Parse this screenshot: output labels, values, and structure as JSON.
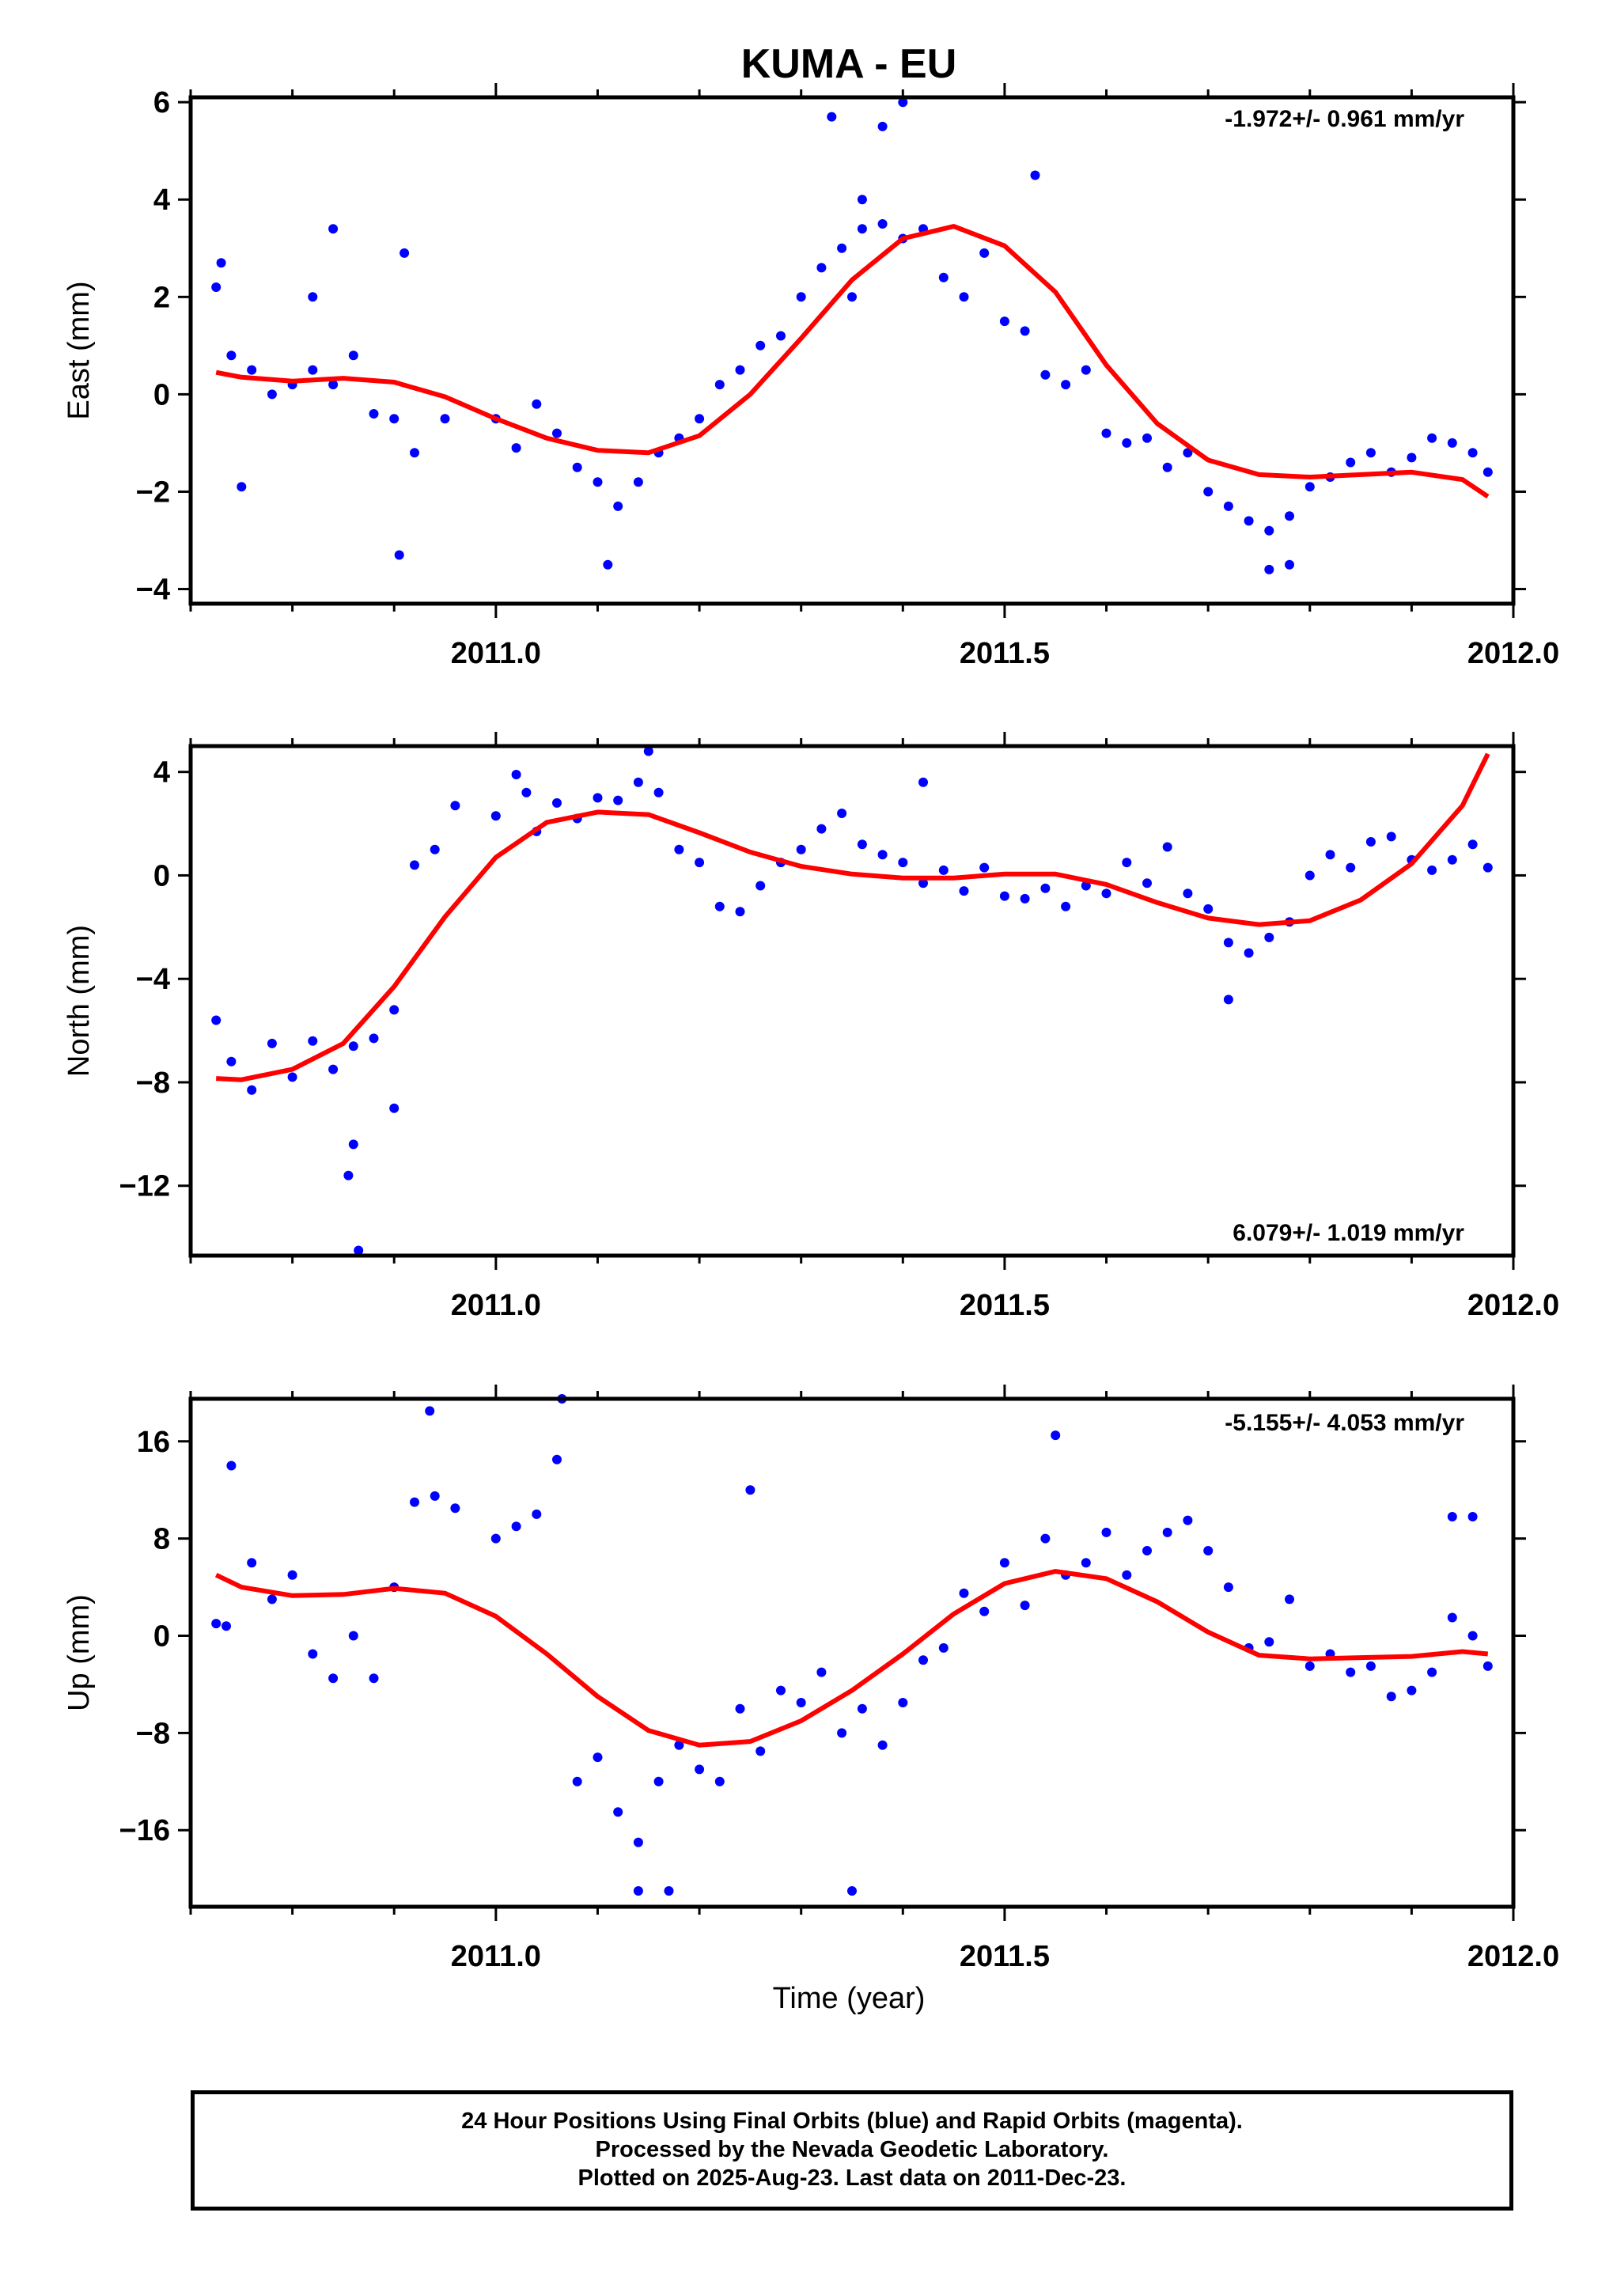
{
  "title": "KUMA - EU",
  "xlabel": "Time (year)",
  "footer": {
    "line1": "24 Hour Positions Using Final Orbits (blue) and Rapid Orbits (magenta).",
    "line2": "Processed by the Nevada Geodetic Laboratory.",
    "line3": "Plotted on 2025-Aug-23. Last data on 2011-Dec-23."
  },
  "colors": {
    "points": "#0000ff",
    "fit": "#ff0000",
    "axes": "#000000"
  },
  "chart_data": [
    {
      "type": "scatter",
      "ylabel": "East (mm)",
      "xlim": [
        2010.7,
        2012.0
      ],
      "ylim": [
        -4.3,
        6.1
      ],
      "xticks": [
        "2011.0",
        "2011.5",
        "2012.0"
      ],
      "yticks": [
        -4,
        -2,
        0,
        2,
        4,
        6
      ],
      "rate_label": "-1.972+/- 0.961 mm/yr",
      "series": [
        {
          "x": [
            2010.725,
            2010.74,
            2010.76,
            2010.78,
            2010.8,
            2010.82,
            2010.84,
            2010.86,
            2010.88,
            2010.9,
            2010.92,
            2010.95,
            2011.0,
            2011.02,
            2011.04,
            2011.06,
            2011.08,
            2011.1,
            2011.12,
            2011.14,
            2011.16,
            2011.18,
            2011.2,
            2011.22,
            2011.24,
            2011.26,
            2011.28,
            2011.3,
            2011.32,
            2011.34,
            2011.36,
            2011.38,
            2011.4,
            2011.42,
            2011.44,
            2011.46,
            2011.48,
            2011.5,
            2011.52,
            2011.54,
            2011.56,
            2011.58,
            2011.6,
            2011.62,
            2011.64,
            2011.66,
            2011.68,
            2011.7,
            2011.72,
            2011.74,
            2011.76,
            2011.78,
            2011.8,
            2011.82,
            2011.84,
            2011.86,
            2011.88,
            2011.9,
            2011.92,
            2011.94,
            2011.96,
            2011.975,
            2010.73,
            2010.75,
            2010.82,
            2010.84,
            2010.91,
            2011.11,
            2011.33,
            2011.36,
            2011.38,
            2011.4,
            2011.53,
            2011.76,
            2011.78,
            2010.905,
            2011.35
          ],
          "y": [
            2.2,
            0.8,
            0.5,
            0.0,
            0.2,
            0.5,
            0.2,
            0.8,
            -0.4,
            -0.5,
            -1.2,
            -0.5,
            -0.5,
            -1.1,
            -0.2,
            -0.8,
            -1.5,
            -1.8,
            -2.3,
            -1.8,
            -1.2,
            -0.9,
            -0.5,
            0.2,
            0.5,
            1.0,
            1.2,
            2.0,
            2.6,
            3.0,
            3.4,
            3.5,
            3.2,
            3.4,
            2.4,
            2.0,
            2.9,
            1.5,
            1.3,
            0.4,
            0.2,
            0.5,
            -0.8,
            -1.0,
            -0.9,
            -1.5,
            -1.2,
            -2.0,
            -2.3,
            -2.6,
            -2.8,
            -2.5,
            -1.9,
            -1.7,
            -1.4,
            -1.2,
            -1.6,
            -1.3,
            -0.9,
            -1.0,
            -1.2,
            -1.6,
            2.7,
            -1.9,
            2.0,
            3.4,
            2.9,
            -3.5,
            5.7,
            4.0,
            5.5,
            6.0,
            4.5,
            -3.6,
            -3.5,
            -3.3,
            2.0
          ]
        },
        {
          "name": "fit",
          "x": [
            2010.725,
            2010.75,
            2010.8,
            2010.85,
            2010.9,
            2010.95,
            2011.0,
            2011.05,
            2011.1,
            2011.15,
            2011.2,
            2011.25,
            2011.3,
            2011.35,
            2011.4,
            2011.45,
            2011.5,
            2011.55,
            2011.6,
            2011.65,
            2011.7,
            2011.75,
            2011.8,
            2011.85,
            2011.9,
            2011.95,
            2011.975
          ],
          "y": [
            0.45,
            0.35,
            0.27,
            0.33,
            0.25,
            -0.05,
            -0.5,
            -0.9,
            -1.15,
            -1.2,
            -0.85,
            0.0,
            1.15,
            2.35,
            3.2,
            3.45,
            3.05,
            2.1,
            0.6,
            -0.6,
            -1.35,
            -1.65,
            -1.7,
            -1.65,
            -1.6,
            -1.75,
            -2.1
          ]
        }
      ]
    },
    {
      "type": "scatter",
      "ylabel": "North (mm)",
      "xlim": [
        2010.7,
        2012.0
      ],
      "ylim": [
        -14.7,
        5.0
      ],
      "xticks": [
        "2011.0",
        "2011.5",
        "2012.0"
      ],
      "yticks": [
        -12,
        -8,
        -4,
        0,
        4
      ],
      "rate_label": "6.079+/- 1.019 mm/yr",
      "series": [
        {
          "x": [
            2010.725,
            2010.74,
            2010.76,
            2010.78,
            2010.8,
            2010.82,
            2010.84,
            2010.86,
            2010.88,
            2010.9,
            2010.92,
            2010.94,
            2010.96,
            2011.0,
            2011.02,
            2011.04,
            2011.06,
            2011.08,
            2011.1,
            2011.12,
            2011.14,
            2011.16,
            2011.18,
            2011.2,
            2011.22,
            2011.24,
            2011.26,
            2011.28,
            2011.3,
            2011.32,
            2011.34,
            2011.36,
            2011.38,
            2011.4,
            2011.42,
            2011.44,
            2011.46,
            2011.48,
            2011.5,
            2011.52,
            2011.54,
            2011.56,
            2011.58,
            2011.6,
            2011.62,
            2011.64,
            2011.66,
            2011.68,
            2011.7,
            2011.72,
            2011.74,
            2011.76,
            2011.78,
            2011.8,
            2011.82,
            2011.84,
            2011.86,
            2011.88,
            2011.9,
            2011.92,
            2011.94,
            2011.96,
            2011.975,
            2010.855,
            2010.86,
            2010.865,
            2010.9,
            2011.03,
            2011.15,
            2011.42,
            2011.72
          ],
          "y": [
            -5.6,
            -7.2,
            -8.3,
            -6.5,
            -7.8,
            -6.4,
            -7.5,
            -6.6,
            -6.3,
            -5.2,
            0.4,
            1.0,
            2.7,
            2.3,
            3.9,
            1.7,
            2.8,
            2.2,
            3.0,
            2.9,
            3.6,
            3.2,
            1.0,
            0.5,
            -1.2,
            -1.4,
            -0.4,
            0.5,
            1.0,
            1.8,
            2.4,
            1.2,
            0.8,
            0.5,
            -0.3,
            0.2,
            -0.6,
            0.3,
            -0.8,
            -0.9,
            -0.5,
            -1.2,
            -0.4,
            -0.7,
            0.5,
            -0.3,
            1.1,
            -0.7,
            -1.3,
            -2.6,
            -3.0,
            -2.4,
            -1.8,
            0.0,
            0.8,
            0.3,
            1.3,
            1.5,
            0.6,
            0.2,
            0.6,
            1.2,
            0.3,
            -11.6,
            -10.4,
            -14.5,
            -9.0,
            3.2,
            4.8,
            3.6,
            -4.8
          ]
        },
        {
          "name": "fit",
          "x": [
            2010.725,
            2010.75,
            2010.8,
            2010.85,
            2010.9,
            2010.95,
            2011.0,
            2011.05,
            2011.1,
            2011.15,
            2011.2,
            2011.25,
            2011.3,
            2011.35,
            2011.4,
            2011.45,
            2011.5,
            2011.55,
            2011.6,
            2011.65,
            2011.7,
            2011.75,
            2011.8,
            2011.85,
            2011.9,
            2011.95,
            2011.975
          ],
          "y": [
            -7.85,
            -7.9,
            -7.5,
            -6.5,
            -4.3,
            -1.6,
            0.7,
            2.05,
            2.45,
            2.35,
            1.65,
            0.9,
            0.35,
            0.05,
            -0.1,
            -0.1,
            0.05,
            0.05,
            -0.35,
            -1.05,
            -1.65,
            -1.9,
            -1.75,
            -0.95,
            0.45,
            2.7,
            4.7
          ]
        }
      ]
    },
    {
      "type": "scatter",
      "ylabel": "Up (mm)",
      "xlim": [
        2010.7,
        2012.0
      ],
      "ylim": [
        -22.3,
        19.5
      ],
      "xticks": [
        "2011.0",
        "2011.5",
        "2012.0"
      ],
      "yticks": [
        -16,
        -8,
        0,
        8,
        16
      ],
      "rate_label": "-5.155+/- 4.053 mm/yr",
      "series": [
        {
          "x": [
            2010.725,
            2010.74,
            2010.76,
            2010.78,
            2010.8,
            2010.82,
            2010.84,
            2010.86,
            2010.88,
            2010.9,
            2010.92,
            2010.94,
            2010.96,
            2011.0,
            2011.02,
            2011.04,
            2011.06,
            2011.08,
            2011.1,
            2011.12,
            2011.14,
            2011.16,
            2011.18,
            2011.2,
            2011.22,
            2011.24,
            2011.26,
            2011.28,
            2011.3,
            2011.32,
            2011.34,
            2011.36,
            2011.38,
            2011.4,
            2011.42,
            2011.44,
            2011.46,
            2011.48,
            2011.5,
            2011.52,
            2011.54,
            2011.56,
            2011.58,
            2011.6,
            2011.62,
            2011.64,
            2011.66,
            2011.68,
            2011.7,
            2011.72,
            2011.74,
            2011.76,
            2011.78,
            2011.8,
            2011.82,
            2011.84,
            2011.86,
            2011.88,
            2011.9,
            2011.92,
            2011.94,
            2011.96,
            2011.975,
            2010.935,
            2011.065,
            2011.14,
            2011.17,
            2011.35,
            2011.25,
            2011.55,
            2011.94,
            2011.96,
            2010.735
          ],
          "y": [
            1.0,
            14.0,
            6.0,
            3.0,
            5.0,
            -1.5,
            -3.5,
            0.0,
            -3.5,
            4.0,
            11.0,
            11.5,
            10.5,
            8.0,
            9.0,
            10.0,
            14.5,
            -12.0,
            -10.0,
            -14.5,
            -17.0,
            -12.0,
            -9.0,
            -11.0,
            -12.0,
            -6.0,
            -9.5,
            -4.5,
            -5.5,
            -3.0,
            -8.0,
            -6.0,
            -9.0,
            -5.5,
            -2.0,
            -1.0,
            3.5,
            2.0,
            6.0,
            2.5,
            8.0,
            5.0,
            6.0,
            8.5,
            5.0,
            7.0,
            8.5,
            9.5,
            7.0,
            4.0,
            -1.0,
            -0.5,
            3.0,
            -2.5,
            -1.5,
            -3.0,
            -2.5,
            -5.0,
            -4.5,
            -3.0,
            1.5,
            0.0,
            -2.5,
            18.5,
            19.5,
            -21.0,
            -21.0,
            -21.0,
            12.0,
            16.5,
            9.8,
            9.8,
            0.8
          ]
        },
        {
          "name": "fit",
          "x": [
            2010.725,
            2010.75,
            2010.8,
            2010.85,
            2010.9,
            2010.95,
            2011.0,
            2011.05,
            2011.1,
            2011.15,
            2011.2,
            2011.25,
            2011.3,
            2011.35,
            2011.4,
            2011.45,
            2011.5,
            2011.55,
            2011.6,
            2011.65,
            2011.7,
            2011.75,
            2011.8,
            2011.85,
            2011.9,
            2011.95,
            2011.975
          ],
          "y": [
            5.0,
            4.0,
            3.3,
            3.4,
            3.9,
            3.5,
            1.6,
            -1.5,
            -5.0,
            -7.8,
            -9.0,
            -8.7,
            -7.0,
            -4.5,
            -1.5,
            1.8,
            4.3,
            5.3,
            4.7,
            2.8,
            0.3,
            -1.6,
            -1.9,
            -1.8,
            -1.7,
            -1.3,
            -1.5
          ]
        }
      ]
    }
  ]
}
